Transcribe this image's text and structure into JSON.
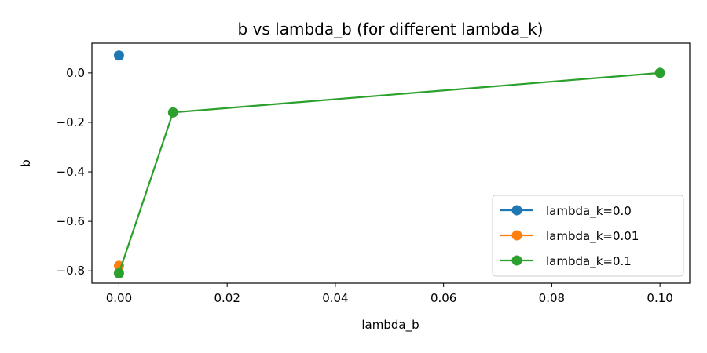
{
  "chart_data": {
    "type": "line",
    "title": "b vs lambda_b (for different lambda_k)",
    "xlabel": "lambda_b",
    "ylabel": "b",
    "xlim": [
      -0.005,
      0.1055
    ],
    "ylim": [
      -0.85,
      0.12
    ],
    "xticks": [
      0.0,
      0.02,
      0.04,
      0.06,
      0.08,
      0.1
    ],
    "xtick_labels": [
      "0.00",
      "0.02",
      "0.04",
      "0.06",
      "0.08",
      "0.10"
    ],
    "yticks": [
      0.0,
      -0.2,
      -0.4,
      -0.6,
      -0.8
    ],
    "ytick_labels": [
      "0.0",
      "−0.2",
      "−0.4",
      "−0.6",
      "−0.8"
    ],
    "grid": false,
    "legend_position": "lower-right",
    "series": [
      {
        "name": "lambda_k=0.0",
        "color": "#1f77b4",
        "points": [
          [
            0.0,
            0.07
          ]
        ]
      },
      {
        "name": "lambda_k=0.01",
        "color": "#ff7f0e",
        "points": [
          [
            0.0,
            -0.78
          ]
        ]
      },
      {
        "name": "lambda_k=0.1",
        "color": "#2ca02c",
        "points": [
          [
            0.0,
            -0.81
          ],
          [
            0.01,
            -0.16
          ],
          [
            0.1,
            0.0
          ]
        ]
      }
    ]
  }
}
